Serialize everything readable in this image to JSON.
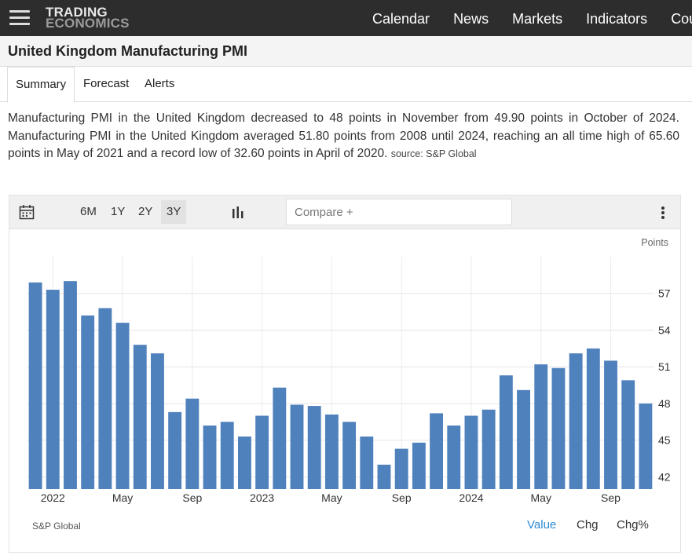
{
  "header": {
    "logo_line1": "TRADING",
    "logo_line2": "ECONOMICS",
    "nav": [
      "Calendar",
      "News",
      "Markets",
      "Indicators",
      "Countries"
    ]
  },
  "page_title": "United Kingdom Manufacturing PMI",
  "tabs": [
    "Summary",
    "Forecast",
    "Alerts"
  ],
  "summary": {
    "text": "Manufacturing PMI in the United Kingdom decreased to 48 points in November from 49.90 points in October of 2024. Manufacturing PMI in the United Kingdom averaged 51.80 points from 2008 until 2024, reaching an all time high of 65.60 points in May of 2021 and a record low of 32.60 points in April of 2020.",
    "source": "source: S&P Global"
  },
  "toolbar": {
    "ranges": [
      "6M",
      "1Y",
      "2Y",
      "3Y"
    ],
    "selected_range": "3Y",
    "compare_placeholder": "Compare +"
  },
  "footer": {
    "source": "S&P Global",
    "options": [
      "Value",
      "Chg",
      "Chg%"
    ],
    "active_option": "Value"
  },
  "colors": {
    "bar": "#4f81bd",
    "active_link": "#2a8ad4",
    "topbar": "#2d2d2d"
  },
  "chart_data": {
    "type": "bar",
    "unit": "Points",
    "categories": [
      "2021-12",
      "2022-01",
      "2022-02",
      "2022-03",
      "2022-04",
      "2022-05",
      "2022-06",
      "2022-07",
      "2022-08",
      "2022-09",
      "2022-10",
      "2022-11",
      "2022-12",
      "2023-01",
      "2023-02",
      "2023-03",
      "2023-04",
      "2023-05",
      "2023-06",
      "2023-07",
      "2023-08",
      "2023-09",
      "2023-10",
      "2023-11",
      "2023-12",
      "2024-01",
      "2024-02",
      "2024-03",
      "2024-04",
      "2024-05",
      "2024-06",
      "2024-07",
      "2024-08",
      "2024-09",
      "2024-10",
      "2024-11"
    ],
    "values": [
      57.9,
      57.3,
      58.0,
      55.2,
      55.8,
      54.6,
      52.8,
      52.1,
      47.3,
      48.4,
      46.2,
      46.5,
      45.3,
      47.0,
      49.3,
      47.9,
      47.8,
      47.1,
      46.5,
      45.3,
      43.0,
      44.3,
      44.8,
      47.2,
      46.2,
      47.0,
      47.5,
      50.3,
      49.1,
      51.2,
      50.9,
      52.1,
      52.5,
      51.5,
      49.9,
      48.0
    ],
    "x_tick_labels": [
      {
        "label": "2022",
        "at": "2022-01"
      },
      {
        "label": "May",
        "at": "2022-05"
      },
      {
        "label": "Sep",
        "at": "2022-09"
      },
      {
        "label": "2023",
        "at": "2023-01"
      },
      {
        "label": "May",
        "at": "2023-05"
      },
      {
        "label": "Sep",
        "at": "2023-09"
      },
      {
        "label": "2024",
        "at": "2024-01"
      },
      {
        "label": "May",
        "at": "2024-05"
      },
      {
        "label": "Sep",
        "at": "2024-09"
      }
    ],
    "y_ticks": [
      42,
      45,
      48,
      51,
      54,
      57
    ],
    "ylim": [
      41,
      60
    ],
    "grid": true,
    "legend": "none"
  }
}
